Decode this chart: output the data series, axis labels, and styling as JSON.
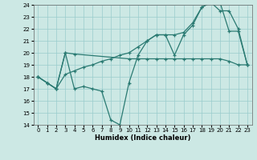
{
  "xlabel": "Humidex (Indice chaleur)",
  "bg_color": "#cce8e4",
  "grid_color": "#99cccc",
  "line_color": "#2a7a72",
  "xmin": 0,
  "xmax": 23,
  "ymin": 14,
  "ymax": 24,
  "line1_x": [
    0,
    1,
    2,
    3,
    4,
    5,
    6,
    7,
    8,
    9,
    10,
    11,
    12,
    13,
    14,
    15,
    16,
    17,
    18,
    19,
    20,
    21,
    22,
    23
  ],
  "line1_y": [
    18,
    17.5,
    17.0,
    20.0,
    17.0,
    17.2,
    17.0,
    16.8,
    14.4,
    14.0,
    17.5,
    19.8,
    21.0,
    21.5,
    21.5,
    19.8,
    21.5,
    22.3,
    23.8,
    24.2,
    24.2,
    21.8,
    21.8,
    19.0
  ],
  "line2_x": [
    0,
    1,
    2,
    3,
    4,
    10,
    11,
    12,
    13,
    14,
    15,
    16,
    17,
    18,
    19,
    20,
    21,
    22,
    23
  ],
  "line2_y": [
    18,
    17.5,
    17.0,
    20.0,
    19.9,
    19.5,
    19.5,
    19.5,
    19.5,
    19.5,
    19.5,
    19.5,
    19.5,
    19.5,
    19.5,
    19.5,
    19.3,
    19.0,
    19.0
  ],
  "line3_x": [
    0,
    1,
    2,
    3,
    4,
    5,
    6,
    7,
    8,
    9,
    10,
    11,
    12,
    13,
    14,
    15,
    16,
    17,
    18,
    19,
    20,
    21,
    22,
    23
  ],
  "line3_y": [
    18,
    17.5,
    17.0,
    18.2,
    18.5,
    18.8,
    19.0,
    19.3,
    19.5,
    19.8,
    20.0,
    20.5,
    21.0,
    21.5,
    21.5,
    21.5,
    21.7,
    22.5,
    23.8,
    24.2,
    23.5,
    23.5,
    22.0,
    19.0
  ]
}
